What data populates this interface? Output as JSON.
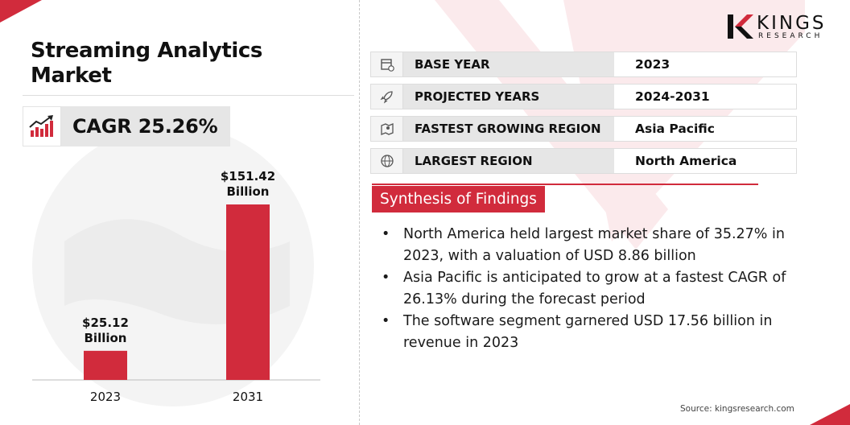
{
  "title": "Streaming Analytics Market",
  "cagr": "CAGR 25.26%",
  "logo": {
    "name": "KINGS",
    "tagline": "RESEARCH"
  },
  "info": [
    {
      "icon": "calendar-icon",
      "label": "BASE YEAR",
      "value": "2023"
    },
    {
      "icon": "rocket-icon",
      "label": "PROJECTED YEARS",
      "value": "2024-2031"
    },
    {
      "icon": "map-icon",
      "label": "FASTEST GROWING REGION",
      "value": "Asia Pacific"
    },
    {
      "icon": "globe-icon",
      "label": "LARGEST REGION",
      "value": "North America"
    }
  ],
  "findings": {
    "heading": "Synthesis of Findings",
    "items": [
      "North America held largest market share of 35.27% in 2023, with a valuation of USD 8.86 billion",
      "Asia Pacific is anticipated to grow at a fastest CAGR of 26.13% during the forecast period",
      "The software segment garnered USD 17.56 billion in revenue in 2023"
    ]
  },
  "source": "Source: kingsresearch.com",
  "colors": {
    "accent": "#d12b3c",
    "panel": "#e6e6e6"
  },
  "chart_data": {
    "type": "bar",
    "categories": [
      "2023",
      "2031"
    ],
    "values": [
      25.12,
      151.42
    ],
    "value_labels": [
      [
        "$25.12",
        "Billion"
      ],
      [
        "$151.42",
        "Billion"
      ]
    ],
    "title": "",
    "xlabel": "",
    "ylabel": "",
    "grid": false,
    "color": "#d12b3c"
  }
}
